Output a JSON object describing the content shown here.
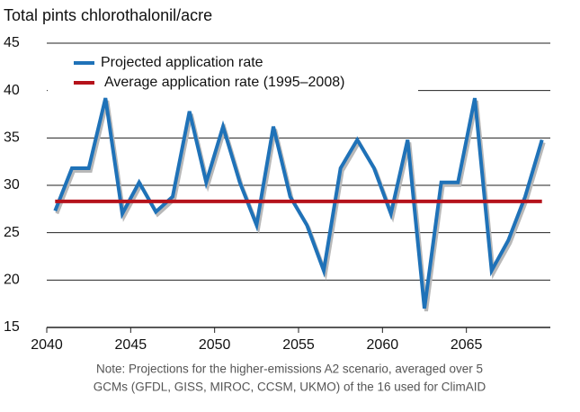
{
  "chart_data": {
    "type": "line",
    "title": "Total pints chlorothalonil/acre",
    "note": [
      "Note: Projections for the higher-emissions A2 scenario, averaged over 5",
      "GCMs (GFDL, GISS, MIROC, CCSM, UKMO) of the 16 used for ClimAID"
    ],
    "x": [
      2040.5,
      2041.5,
      2042.5,
      2043.5,
      2044.5,
      2045.5,
      2046.5,
      2047.5,
      2048.5,
      2049.5,
      2050.5,
      2051.5,
      2052.5,
      2053.5,
      2054.5,
      2055.5,
      2056.5,
      2057.5,
      2058.5,
      2059.5,
      2060.5,
      2061.5,
      2062.5,
      2063.5,
      2064.5,
      2065.5,
      2066.5,
      2067.5,
      2068.5,
      2069.5
    ],
    "series": [
      {
        "name": "Projected application rate",
        "color": "#1f72b8",
        "values": [
          27.3,
          31.8,
          31.8,
          39.2,
          27,
          30.3,
          27.2,
          28.8,
          37.8,
          30.3,
          36.2,
          30.3,
          25.8,
          36.2,
          28.8,
          25.8,
          21,
          31.8,
          34.8,
          31.8,
          27,
          34.8,
          17,
          30.3,
          30.3,
          39.2,
          21,
          24.2,
          28.8,
          34.8
        ]
      },
      {
        "name": "Average application rate (1995–2008)",
        "color": "#b5121b",
        "values": [
          28.3,
          28.3,
          28.3,
          28.3,
          28.3,
          28.3,
          28.3,
          28.3,
          28.3,
          28.3,
          28.3,
          28.3,
          28.3,
          28.3,
          28.3,
          28.3,
          28.3,
          28.3,
          28.3,
          28.3,
          28.3,
          28.3,
          28.3,
          28.3,
          28.3,
          28.3,
          28.3,
          28.3,
          28.3,
          28.3
        ]
      }
    ],
    "xlim": [
      2040,
      2070
    ],
    "xticks": [
      2040,
      2045,
      2050,
      2055,
      2060,
      2065
    ],
    "ylim": [
      15,
      45
    ],
    "yticks": [
      15,
      20,
      25,
      30,
      35,
      40,
      45
    ],
    "grid": true,
    "legend": "upper left"
  }
}
